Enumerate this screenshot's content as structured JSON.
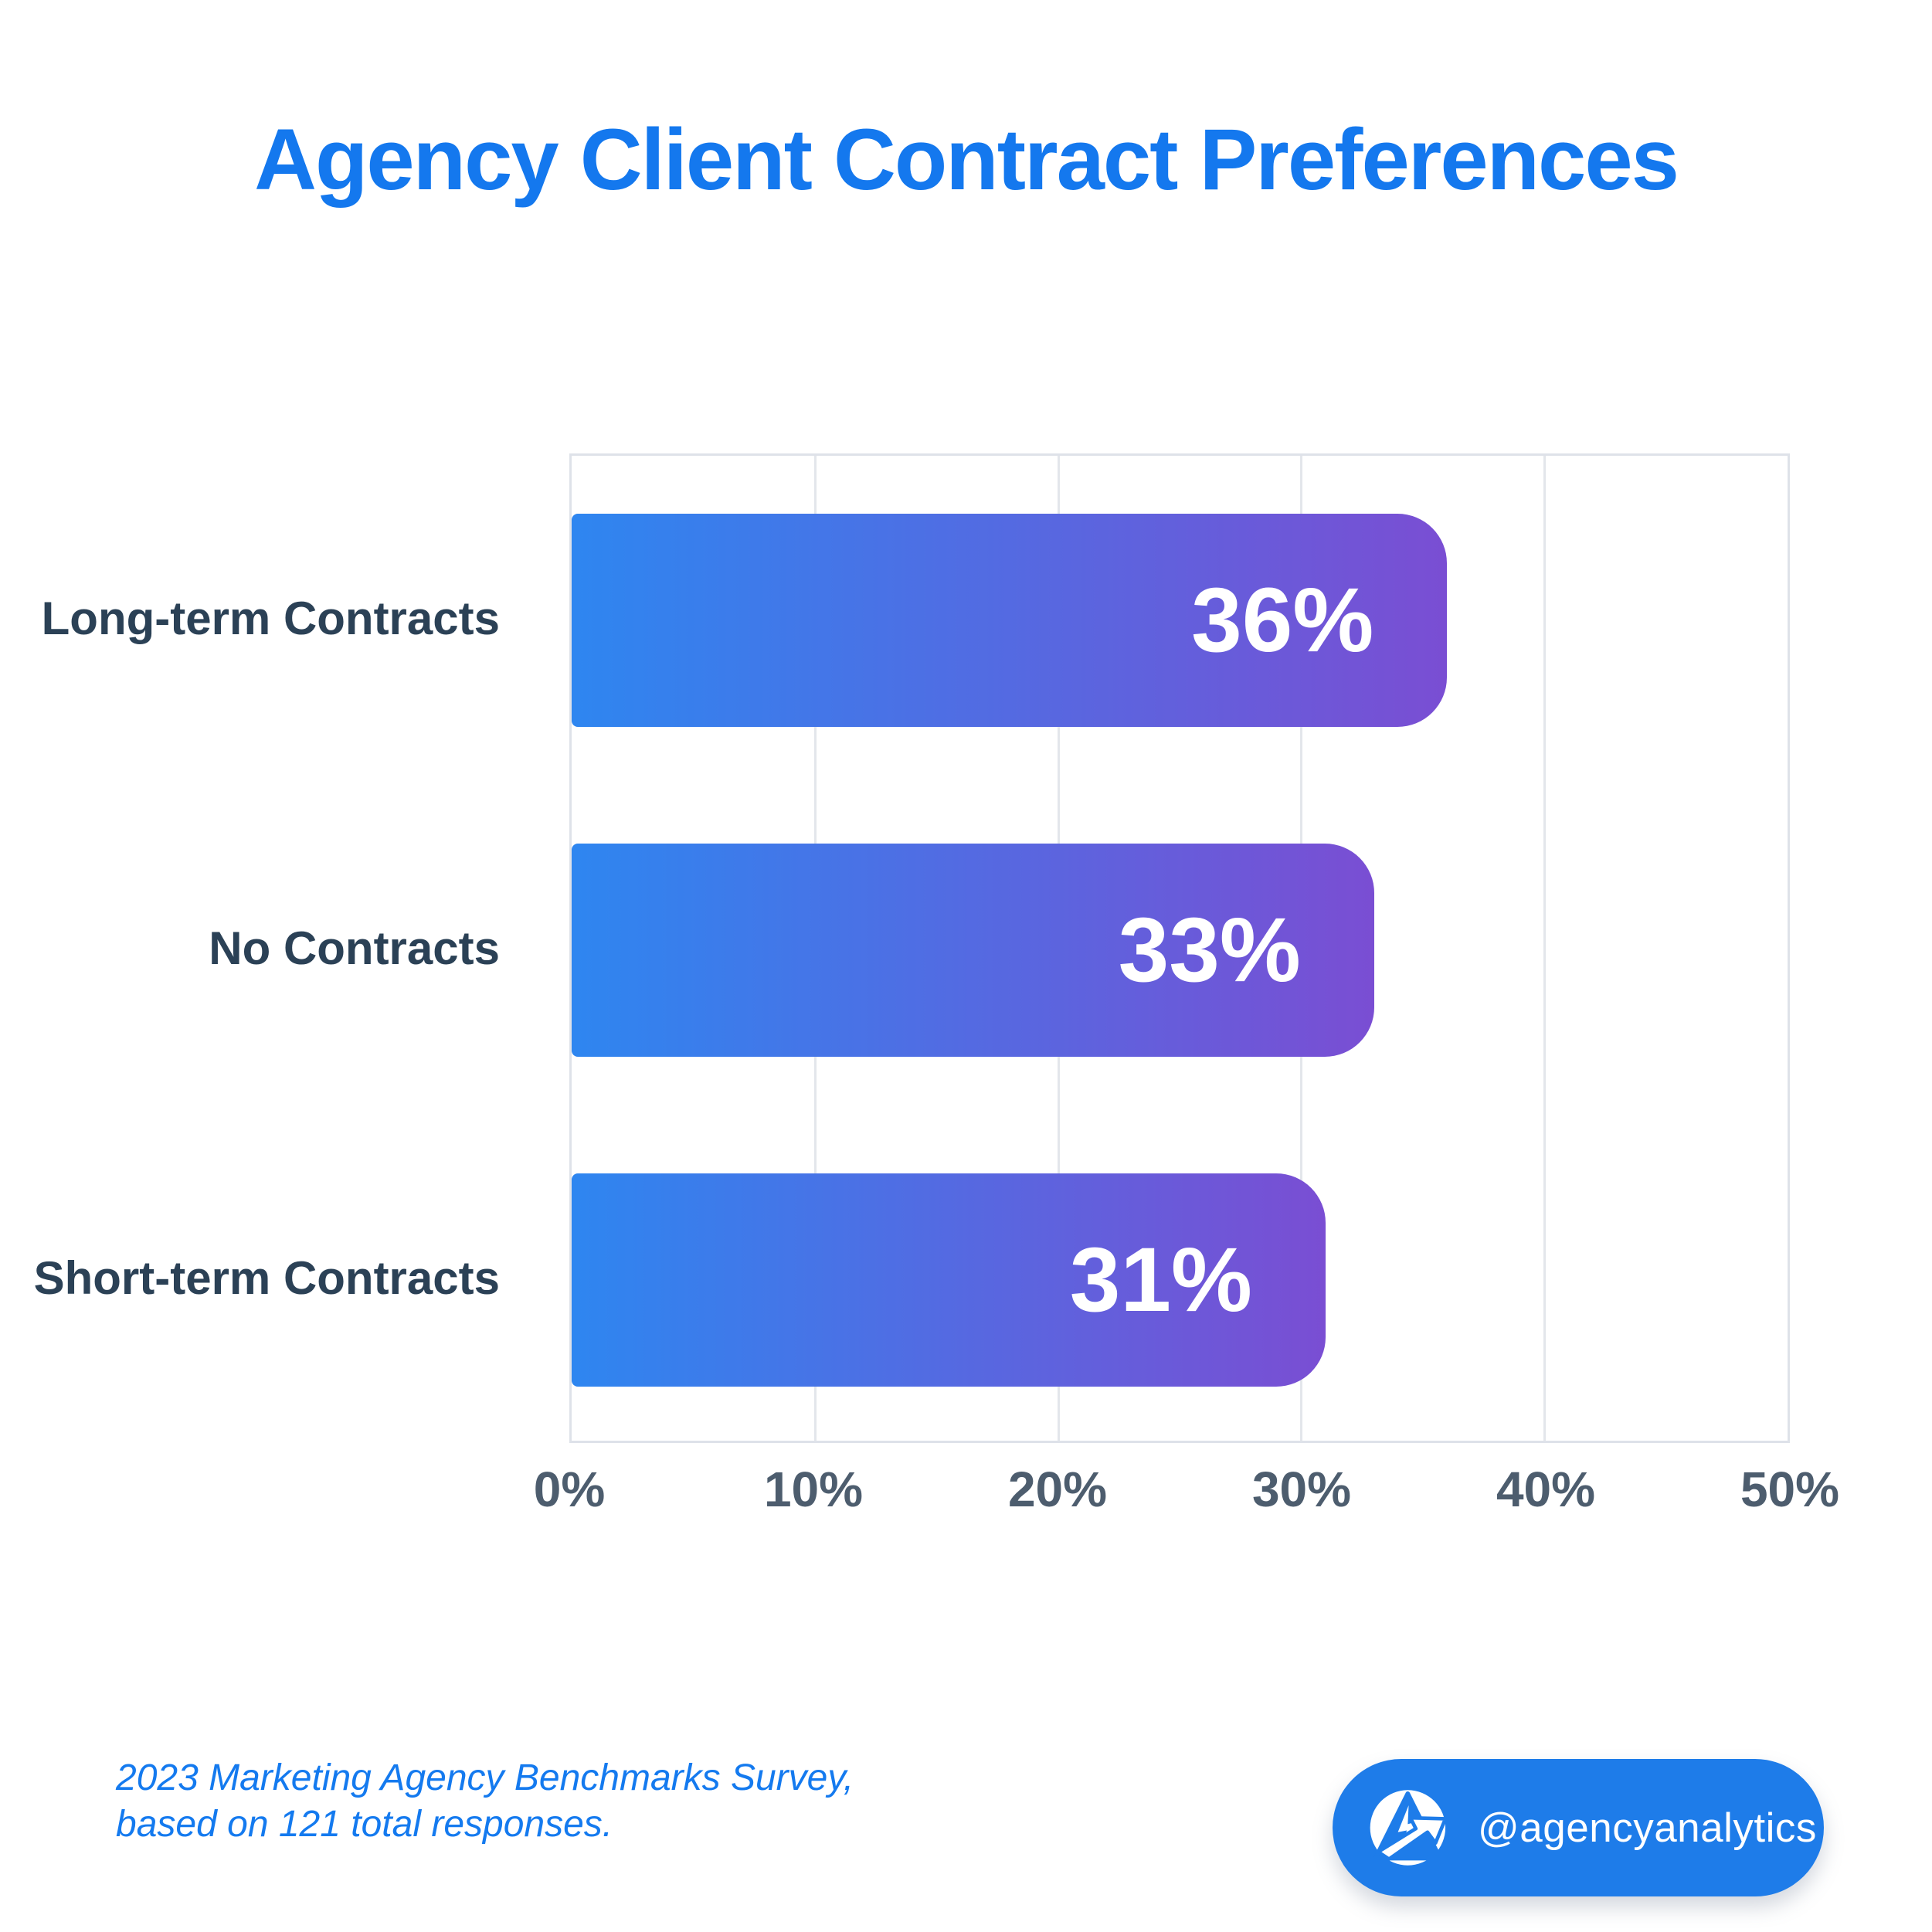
{
  "title": "Agency Client Contract Preferences",
  "chart_data": {
    "type": "bar",
    "orientation": "horizontal",
    "title": "Agency Client Contract Preferences",
    "categories": [
      "Long-term Contracts",
      "No Contracts",
      "Short-term Contracts"
    ],
    "values": [
      36,
      33,
      31
    ],
    "value_labels": [
      "36%",
      "33%",
      "31%"
    ],
    "x_ticks": [
      "0%",
      "10%",
      "20%",
      "30%",
      "40%",
      "50%"
    ],
    "xlim": [
      0,
      50
    ],
    "xlabel": "",
    "ylabel": "",
    "grid": "vertical",
    "legend": "none",
    "bar_gradient_start": "#2E86F0",
    "bar_gradient_end": "#7A4ED3"
  },
  "footer": {
    "line1": "2023 Marketing Agency Benchmarks Survey,",
    "line2": "based on 121 total responses."
  },
  "badge": {
    "handle": "@agencyanalytics",
    "logo_icon": "agencyanalytics-logo",
    "background": "#1E7CE9"
  },
  "colors": {
    "title_blue": "#1478EE",
    "footer_blue": "#147AEF",
    "category_label": "#2B4156",
    "tick_label": "#4D5D6E",
    "grid": "#E3E6EB",
    "plot_border": "#DEE2E9",
    "bar_text": "#FFFFFF"
  }
}
